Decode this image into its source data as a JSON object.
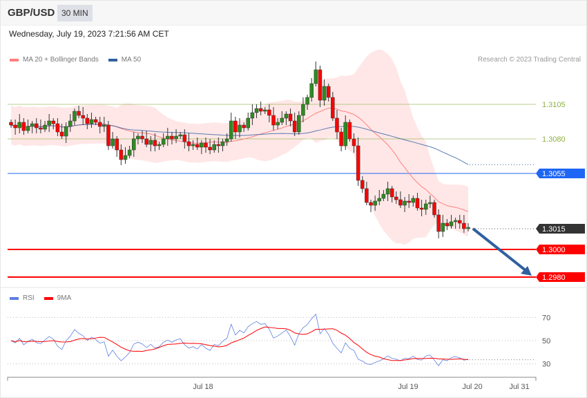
{
  "header": {
    "symbol": "GBP/USD",
    "timeframe": "30 MIN"
  },
  "timestamp": "Wednesday, July 19, 2023 7:21:56 AM CET",
  "legend": [
    {
      "label": "MA 20 + Bollinger Bands",
      "color": "#ff7f7f"
    },
    {
      "label": "MA 50",
      "color": "#3060a0"
    }
  ],
  "credit": "Research © 2023 Trading Central",
  "levels": [
    {
      "price": 1.3105,
      "label": "1.3105",
      "color": "#8cb040",
      "style": "line"
    },
    {
      "price": 1.308,
      "label": "1.3080",
      "color": "#8cb040",
      "style": "line"
    },
    {
      "price": 1.3055,
      "label": "1.3055",
      "color": "#1e66f5",
      "style": "tag"
    },
    {
      "price": 1.3015,
      "label": "1.3015",
      "color": "#333333",
      "style": "tag-last"
    },
    {
      "price": 1.3,
      "label": "1.3000",
      "color": "#ff0000",
      "style": "tag"
    },
    {
      "price": 1.298,
      "label": "1.2980",
      "color": "#ff0000",
      "style": "tag"
    }
  ],
  "forecast_arrow": {
    "from": 1.3015,
    "to": 1.298,
    "color": "#3060a0",
    "direction": "down"
  },
  "closes": [
    1.309,
    1.3088,
    1.3092,
    1.3086,
    1.3089,
    1.3091,
    1.3088,
    1.3087,
    1.309,
    1.3093,
    1.3091,
    1.3085,
    1.3082,
    1.3089,
    1.3093,
    1.31,
    1.3097,
    1.3095,
    1.3091,
    1.3094,
    1.3092,
    1.3089,
    1.309,
    1.3075,
    1.308,
    1.3072,
    1.3065,
    1.3068,
    1.3072,
    1.308,
    1.3082,
    1.308,
    1.3076,
    1.3079,
    1.3075,
    1.3076,
    1.308,
    1.3082,
    1.308,
    1.3082,
    1.3083,
    1.3078,
    1.3075,
    1.3076,
    1.3074,
    1.3077,
    1.3074,
    1.3072,
    1.3076,
    1.3075,
    1.3078,
    1.308,
    1.3093,
    1.3085,
    1.309,
    1.3088,
    1.3095,
    1.3099,
    1.3102,
    1.31,
    1.3101,
    1.3097,
    1.309,
    1.3092,
    1.3095,
    1.3098,
    1.3093,
    1.3085,
    1.3097,
    1.3105,
    1.311,
    1.312,
    1.313,
    1.3108,
    1.3118,
    1.311,
    1.3095,
    1.3085,
    1.3075,
    1.3092,
    1.308,
    1.3075,
    1.305,
    1.3044,
    1.3034,
    1.3032,
    1.3035,
    1.3037,
    1.304,
    1.3044,
    1.3038,
    1.3036,
    1.3032,
    1.3035,
    1.3034,
    1.3037,
    1.303,
    1.3029,
    1.3033,
    1.3034,
    1.3025,
    1.3013,
    1.3019,
    1.3017,
    1.302,
    1.3021,
    1.3019,
    1.3015,
    1.3016
  ],
  "candle_colors": {
    "up": "#2e8b22",
    "down": "#ff0000"
  },
  "rsi": {
    "legend": [
      {
        "label": "RSI",
        "color": "#5b7fe0"
      },
      {
        "label": "9MA",
        "color": "#ff0000"
      }
    ],
    "levels": [
      70,
      50,
      30
    ]
  },
  "x_axis": {
    "labels": [
      "Jul 18",
      "Jul 19",
      "Jul 20",
      "Jul 31"
    ]
  }
}
